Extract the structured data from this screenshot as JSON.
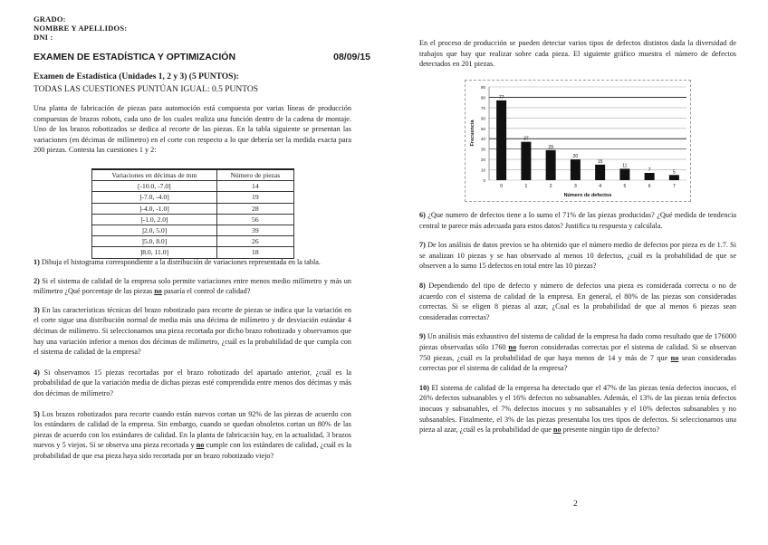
{
  "header": {
    "grado": "GRADO:",
    "nombre": "NOMBRE Y APELLIDOS:",
    "dni": "DNI :"
  },
  "title": {
    "text": "EXAMEN DE ESTADÍSTICA Y OPTIMIZACIÓN",
    "date": "08/09/15"
  },
  "subtitle": "Examen de Estadística (Unidades 1, 2 y 3) (5 PUNTOS):",
  "scoring": "TODAS LAS CUESTIONES PUNTÚAN IGUAL: 0.5 PUNTOS",
  "intro_left": "Una planta de fabricación de piezas para automoción está compuesta por varias líneas de producción compuestas de brazos robots, cada uno de los cuales realiza una función dentro de la cadena de montaje. Uno de los brazos robotizados se dedica al recorte de las piezas. En la tabla siguiente se presentan las variaciones (en décimas de milímetro) en el corte con respecto a lo que debería ser la medida exacta para 200 piezas. Contesta las cuestiones 1 y 2:",
  "table": {
    "headers": [
      "Variaciones en décimas de mm",
      "Número de piezas"
    ],
    "rows": [
      [
        "[-10.0, -7.0]",
        "14"
      ],
      [
        "]-7.0, -4.0]",
        "19"
      ],
      [
        "]-4.0, -1.0]",
        "28"
      ],
      [
        "]-1.0, 2.0]",
        "56"
      ],
      [
        "]2.0, 5.0]",
        "39"
      ],
      [
        "]5.0, 8.0]",
        "26"
      ],
      [
        "]8.0, 11.0]",
        "18"
      ]
    ]
  },
  "questions_left": [
    {
      "num": "1)",
      "parts": [
        {
          "t": " Dibuja el histograma correspondiente a la distribución de variaciones representada en la tabla."
        }
      ]
    },
    {
      "num": "2)",
      "parts": [
        {
          "t": " Si el sistema de calidad de la empresa solo permite variaciones entre menos medio milímetro y más un milímetro ¿Qué porcentaje de las piezas "
        },
        {
          "t": "no",
          "u": true
        },
        {
          "t": " pasaría el control de calidad?"
        }
      ]
    },
    {
      "num": "3)",
      "parts": [
        {
          "t": " En las características técnicas del brazo robotizado para recorte de piezas se indica que la variación en el corte sigue una distribución normal de media más una décima de milímetro y de desviación estándar 4 décimas de milímetro. Si seleccionamos una pieza recortada por dicho brazo robotizado y observamos que hay una variación inferior a menos dos décimas de milímetro, ¿cuál es la probabilidad de que cumpla con el sistema de calidad de la empresa?"
        }
      ]
    },
    {
      "num": "4)",
      "parts": [
        {
          "t": " Si observamos 15 piezas recortadas por el brazo robotizado del apartado anterior, ¿cuál es la probabilidad de que la variación media de dichas piezas esté comprendida entre menos dos décimas y más dos décimas de milímetro?"
        }
      ]
    },
    {
      "num": "5)",
      "parts": [
        {
          "t": " Los brazos robotizados para recorte cuando están nuevos cortan un 92% de las piezas de acuerdo con los estándares de calidad de la empresa. Sin embargo, cuando se quedan obsoletos cortan un 80% de las piezas de acuerdo con los estándares de calidad. En la planta de fabricación hay, en la actualidad, 3 brazos nuevos y 5 viejos. Si se observa una pieza recortada y "
        },
        {
          "t": "no",
          "u": true
        },
        {
          "t": " cumple con los estándares de calidad, ¿cuál es la probabilidad de que esa pieza haya sido recortada por un brazo robotizado viejo?"
        }
      ]
    }
  ],
  "intro_right": "En el proceso de producción se pueden detectar varios tipos de defectos distintos dada la diversidad de trabajos que hay que realizar sobre cada pieza. El siguiente gráfico muestra el número de defectos detectados en 201 piezas.",
  "chart_data": {
    "type": "bar",
    "categories": [
      "0",
      "1",
      "2",
      "3",
      "4",
      "5",
      "6",
      "7"
    ],
    "values": [
      77,
      37,
      29,
      20,
      15,
      11,
      7,
      5
    ],
    "xlabel": "Número de defectos",
    "ylabel": "Frecuencia",
    "ylim": [
      0,
      90
    ],
    "yticks": [
      "0",
      "10",
      "20",
      "30",
      "40",
      "50",
      "60",
      "70",
      "80",
      "90"
    ],
    "bar_color": "#111111",
    "grid": true
  },
  "questions_right": [
    {
      "num": "6)",
      "parts": [
        {
          "t": " ¿Que numero de defectos tiene a lo sumo el 71% de las piezas producidas? ¿Qué medida de tendencia central te parece más adecuada para estos datos? Justifica tu respuesta y calcúlala."
        }
      ]
    },
    {
      "num": "7)",
      "parts": [
        {
          "t": " De los análisis de datos previos se ha obtenido que el número medio de defectos por pieza es de 1.7. Si se analizan 10 piezas y se han observado al menos 10 defectos, ¿cuál es la probabilidad de que se observen a lo sumo 15 defectos en total entre las 10 piezas?"
        }
      ]
    },
    {
      "num": "8)",
      "parts": [
        {
          "t": " Dependiendo del tipo de defecto y número de defectos una pieza es considerada correcta o no de acuerdo con el sistema de calidad de la empresa. En general, el 80% de las piezas son consideradas correctas. Si se eligen 8 piezas al azar, ¿Cual es la probabilidad de que al menos 6 piezas sean consideradas correctas?"
        }
      ]
    },
    {
      "num": "9)",
      "parts": [
        {
          "t": " Un análisis más exhaustivo del sistema de calidad de la empresa ha dado como resultado que de 176000 piezas observadas sólo 1760 "
        },
        {
          "t": "no",
          "u": true
        },
        {
          "t": " fueron consideradas correctas por el sistema de calidad. Si se observan 750 piezas, ¿cuál es la probabilidad de que haya menos de 14 y más de 7 que "
        },
        {
          "t": "no",
          "u": true
        },
        {
          "t": " sean consideradas correctas por el sistema de calidad de la empresa?"
        }
      ]
    },
    {
      "num": "10)",
      "parts": [
        {
          "t": " El sistema de calidad de la empresa ha detectado que el 47% de las piezas tenía defectos inocuos, el 26% defectos subsanables y el 16% defectos no subsanables. Además, el 13% de las piezas tenía defectos inocuos y subsanables, el 7% defectos inocuos y no subsanables y el 10% defectos subsanables y no subsanables. Finalmente, el 3% de las piezas presentaba los tres tipos de defectos. Si seleccionamos una pieza al azar, ¿cuál es la probabilidad de que "
        },
        {
          "t": "no",
          "u": true
        },
        {
          "t": " presente ningún tipo de defecto?"
        }
      ]
    }
  ],
  "page_number": "2"
}
